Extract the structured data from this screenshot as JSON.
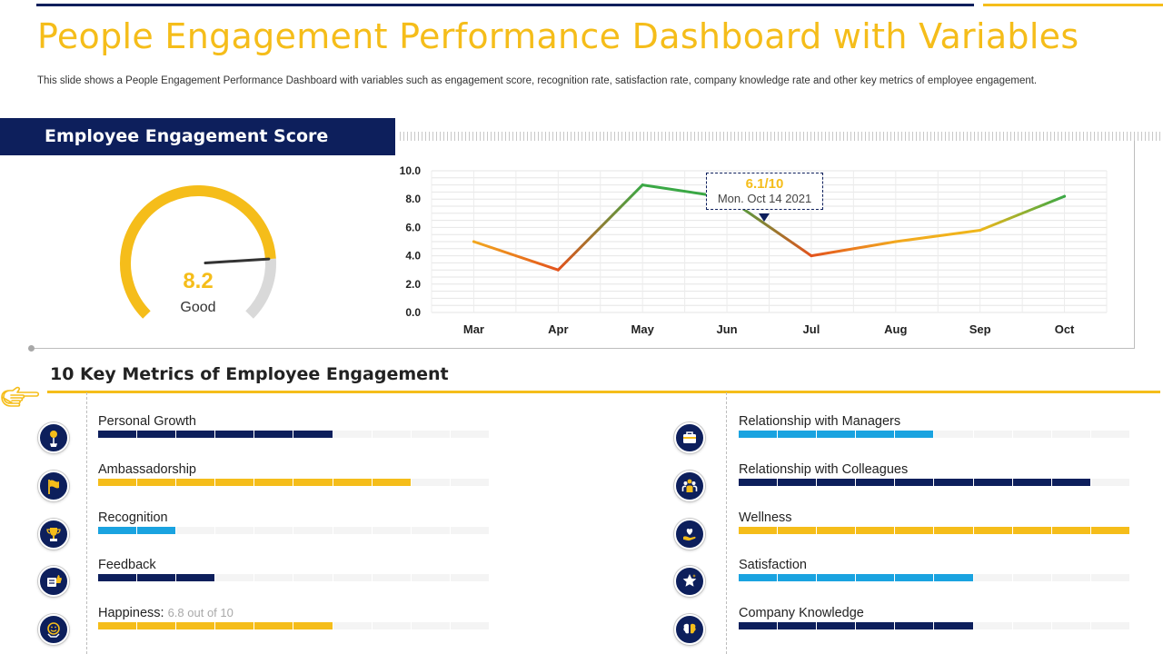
{
  "page": {
    "title": "People Engagement Performance Dashboard with Variables",
    "subtitle": "This slide shows a People Engagement Performance Dashboard with variables such as engagement score, recognition rate, satisfaction rate, company knowledge rate and other key metrics of employee engagement."
  },
  "colors": {
    "navy": "#0d1f5c",
    "gold": "#f5bd1a",
    "sky": "#1aa3e0",
    "empty": "#f4f4f4"
  },
  "score": {
    "heading": "Employee Engagement Score",
    "value": "8.2",
    "label": "Good",
    "gauge_fraction": 0.82
  },
  "chart_data": {
    "type": "line",
    "categories": [
      "Mar",
      "Apr",
      "May",
      "Jun",
      "Jul",
      "Aug",
      "Sep",
      "Oct"
    ],
    "series": [
      {
        "values": [
          5.0,
          3.0,
          9.0,
          8.1,
          4.0,
          5.0,
          5.8,
          8.2
        ]
      }
    ],
    "ylim": [
      0,
      10
    ],
    "yticks": [
      "0.0",
      "2.0",
      "4.0",
      "6.0",
      "8.0",
      "10.0"
    ],
    "grid": true,
    "tooltip": {
      "value": "6.1/10",
      "date": "Mon. Oct 14 2021"
    }
  },
  "metrics": {
    "heading": "10 Key Metrics of Employee Engagement",
    "left": [
      {
        "label": "Personal Growth",
        "filled": 6,
        "color": "navy",
        "icon": "money-plant-icon"
      },
      {
        "label": "Ambassadorship",
        "filled": 8,
        "color": "gold",
        "icon": "flag-icon"
      },
      {
        "label": "Recognition",
        "filled": 2,
        "color": "sky",
        "icon": "trophy-icon"
      },
      {
        "label": "Feedback",
        "filled": 3,
        "color": "navy",
        "icon": "feedback-thumbs-up-icon"
      },
      {
        "label": "Happiness:",
        "extra": "6.8 out of 10",
        "filled": 6,
        "color": "gold",
        "icon": "happy-face-icon"
      }
    ],
    "right": [
      {
        "label": "Relationship with Managers",
        "filled": 5,
        "color": "sky",
        "icon": "briefcase-icon"
      },
      {
        "label": "Relationship with Colleagues",
        "filled": 9,
        "color": "navy",
        "icon": "team-icon"
      },
      {
        "label": "Wellness",
        "filled": 10,
        "color": "gold",
        "icon": "heart-hand-icon"
      },
      {
        "label": "Satisfaction",
        "filled": 6,
        "color": "sky",
        "icon": "star-icon"
      },
      {
        "label": "Company Knowledge",
        "filled": 6,
        "color": "navy",
        "icon": "brain-icon"
      }
    ]
  }
}
